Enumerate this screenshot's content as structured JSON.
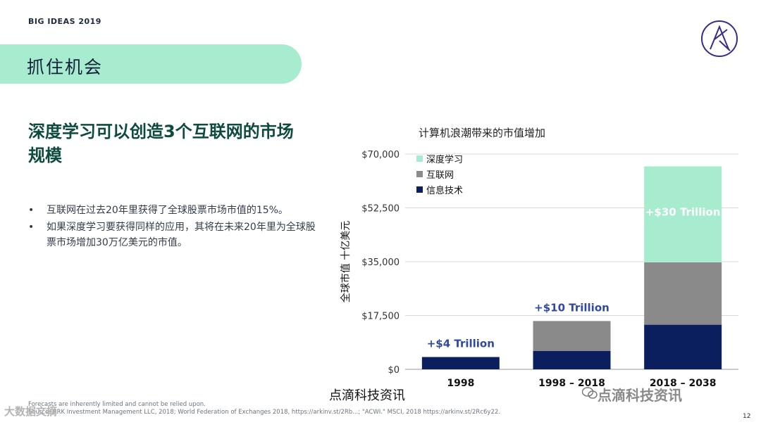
{
  "header": {
    "label": "BIG IDEAS 2019"
  },
  "section": {
    "title": "抓住机会"
  },
  "headline": {
    "line1": "深度学习可以创造3个互联网的市场",
    "line2": "规模"
  },
  "bullets": [
    "互联网在过去20年里获得了全球股票市场市值的15%。",
    "如果深度学习要获得同样的应用，其将在未来20年里为全球股票市场增加30万亿美元的市值。"
  ],
  "chart_data": {
    "type": "bar",
    "stacked": true,
    "title": "计算机浪潮带来的市值增加",
    "ylabel": "全球市值 十亿美元",
    "xlabel": "",
    "categories": [
      "1998",
      "1998 – 2018",
      "2018 – 2038"
    ],
    "ylim": [
      0,
      70000
    ],
    "yticks": [
      "$0",
      "$17,500",
      "$35,000",
      "$52,500",
      "$70,000"
    ],
    "series": [
      {
        "name": "信息技术",
        "color": "#0b1f5e",
        "values": [
          4000,
          6000,
          14500
        ]
      },
      {
        "name": "互联网",
        "color": "#8a8a8a",
        "values": [
          0,
          9700,
          20300
        ]
      },
      {
        "name": "深度学习",
        "color": "#a8ecd0",
        "values": [
          0,
          0,
          31200
        ]
      }
    ],
    "annotations": [
      "+$4 Trillion",
      "+$10 Trillion",
      "+$30 Trillion"
    ],
    "legend_position": "top-left",
    "grid": true
  },
  "watermarks": {
    "center": "点滴科技资讯",
    "right": "点滴科技资讯",
    "left": "大数据文摘"
  },
  "footnote": {
    "line1": "Forecasts are inherently limited and cannot be relied upon.",
    "line2": "Source: ARK Investment Management LLC, 2018; World Federation of Exchanges 2018, https://arkinv.st/2Rb...; \"ACWI.\" MSCI, 2018 https://arkinv.st/2Rc6y22."
  },
  "page": {
    "number": "12"
  }
}
